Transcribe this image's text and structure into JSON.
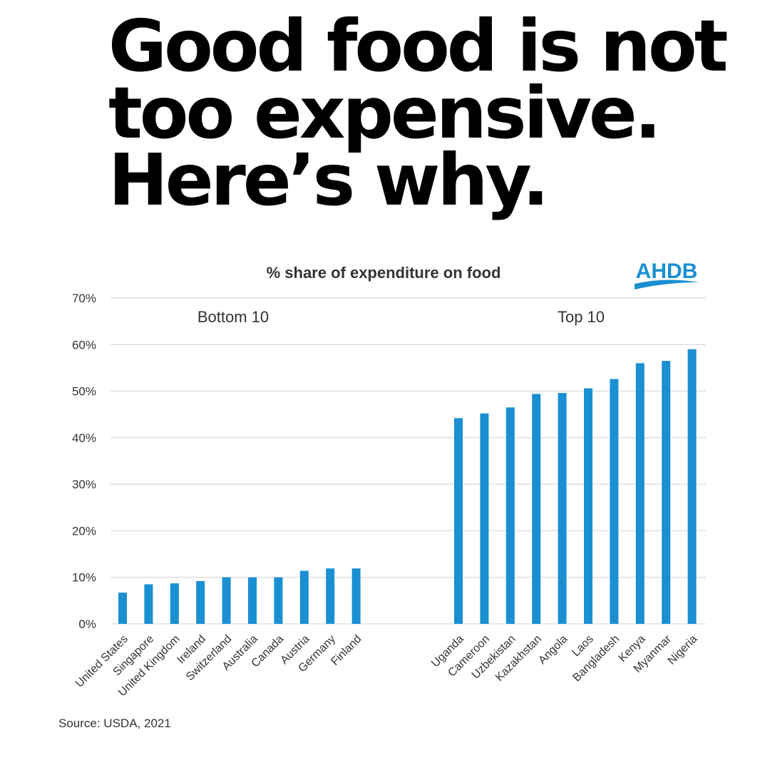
{
  "headline": {
    "line1": "Good food is not",
    "line2": "too expensive.",
    "line3": "Here’s why."
  },
  "logo": {
    "text": "AHDB",
    "color": "#1a8fd1"
  },
  "colors": {
    "bar": "#1a8fd1",
    "gridline": "#d9d9d9",
    "text": "#333333"
  },
  "chart_data": {
    "type": "bar",
    "title": "% share of expenditure on food",
    "ylabel": "",
    "xlabel": "",
    "ylim": [
      0,
      70
    ],
    "yticks": [
      "0%",
      "10%",
      "20%",
      "30%",
      "40%",
      "50%",
      "60%",
      "70%"
    ],
    "grid": true,
    "groups": [
      {
        "name": "Bottom 10",
        "categories": [
          "United States",
          "Singapore",
          "United Kingdom",
          "Ireland",
          "Switzerland",
          "Australia",
          "Canada",
          "Austria",
          "Germany",
          "Finland"
        ],
        "values": [
          6.7,
          8.5,
          8.7,
          9.2,
          10.0,
          10.0,
          10.0,
          11.4,
          11.9,
          11.9
        ]
      },
      {
        "name": "Top 10",
        "categories": [
          "Uganda",
          "Cameroon",
          "Uzbekistan",
          "Kazakhstan",
          "Angola",
          "Laos",
          "Bangladesh",
          "Kenya",
          "Myanmar",
          "Nigeria"
        ],
        "values": [
          44.2,
          45.2,
          46.5,
          49.4,
          49.6,
          50.6,
          52.6,
          56.0,
          56.5,
          59.0
        ]
      }
    ],
    "source": "Source: USDA, 2021"
  }
}
